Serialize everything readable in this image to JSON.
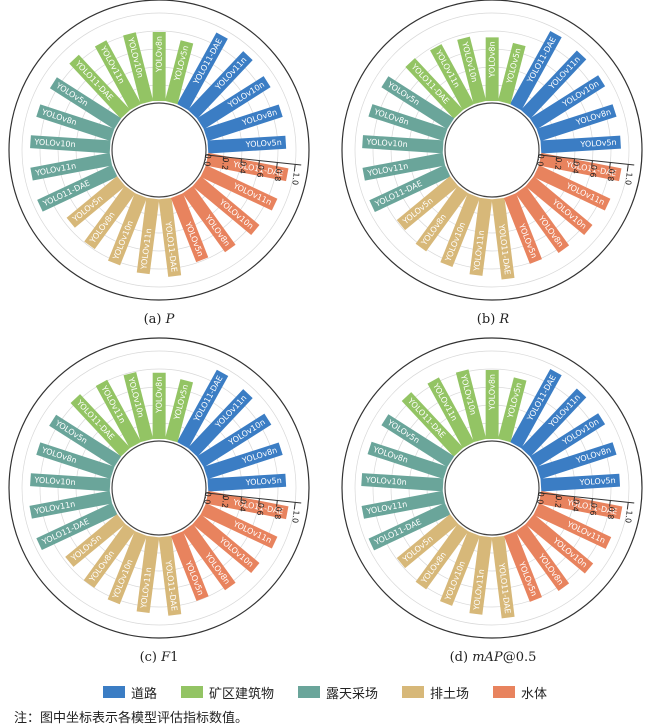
{
  "categories": [
    {
      "key": "road",
      "name": "道路",
      "color": "#3b7dc4"
    },
    {
      "key": "mine_building",
      "name": "矿区建筑物",
      "color": "#93c464"
    },
    {
      "key": "open_pit",
      "name": "露天采场",
      "color": "#6aa59a"
    },
    {
      "key": "dump",
      "name": "排土场",
      "color": "#d7b879"
    },
    {
      "key": "water",
      "name": "水体",
      "color": "#e8835e"
    }
  ],
  "models": [
    "YOLOv5n",
    "YOLOv8n",
    "YOLOv10n",
    "YOLOv11n",
    "YOLO11-DAE"
  ],
  "axis_ticks": [
    "0.0",
    "0.2",
    "0.4",
    "0.6",
    "0.8",
    "1.0"
  ],
  "note": "注：图中坐标表示各模型评估指标数值。",
  "chart_data": [
    {
      "type": "circular-bar",
      "metric": "P",
      "caption_prefix": "(a) ",
      "caption_italic": "P",
      "caption_suffix": "",
      "ylim": [
        0,
        1
      ],
      "series": {
        "road": [
          0.8,
          0.81,
          0.81,
          0.83,
          0.84
        ],
        "mine_building": [
          0.63,
          0.7,
          0.72,
          0.74,
          0.77
        ],
        "open_pit": [
          0.78,
          0.8,
          0.82,
          0.83,
          0.85
        ],
        "dump": [
          0.66,
          0.7,
          0.74,
          0.77,
          0.8
        ],
        "water": [
          0.7,
          0.74,
          0.78,
          0.81,
          0.84
        ]
      }
    },
    {
      "type": "circular-bar",
      "metric": "R",
      "caption_prefix": "(b) ",
      "caption_italic": "R",
      "caption_suffix": "",
      "ylim": [
        0,
        1
      ],
      "series": {
        "road": [
          0.82,
          0.82,
          0.83,
          0.84,
          0.86
        ],
        "mine_building": [
          0.6,
          0.64,
          0.67,
          0.69,
          0.72
        ],
        "open_pit": [
          0.8,
          0.81,
          0.83,
          0.84,
          0.86
        ],
        "dump": [
          0.7,
          0.73,
          0.76,
          0.79,
          0.83
        ],
        "water": [
          0.72,
          0.75,
          0.78,
          0.81,
          0.84
        ]
      }
    },
    {
      "type": "circular-bar",
      "metric": "F1",
      "caption_prefix": "(c) ",
      "caption_italic": "F",
      "caption_suffix": "1",
      "ylim": [
        0,
        1
      ],
      "series": {
        "road": [
          0.8,
          0.81,
          0.82,
          0.83,
          0.85
        ],
        "mine_building": [
          0.62,
          0.67,
          0.7,
          0.72,
          0.75
        ],
        "open_pit": [
          0.79,
          0.8,
          0.82,
          0.84,
          0.86
        ],
        "dump": [
          0.68,
          0.71,
          0.75,
          0.78,
          0.81
        ],
        "water": [
          0.71,
          0.74,
          0.78,
          0.81,
          0.84
        ]
      }
    },
    {
      "type": "circular-bar",
      "metric": "mAP@0.5",
      "caption_prefix": "(d) ",
      "caption_italic": "mAP",
      "caption_suffix": "@0.5",
      "ylim": [
        0,
        1
      ],
      "series": {
        "road": [
          0.81,
          0.82,
          0.83,
          0.84,
          0.86
        ],
        "mine_building": [
          0.64,
          0.7,
          0.73,
          0.75,
          0.78
        ],
        "open_pit": [
          0.8,
          0.82,
          0.84,
          0.85,
          0.87
        ],
        "dump": [
          0.7,
          0.73,
          0.77,
          0.8,
          0.84
        ],
        "water": [
          0.72,
          0.75,
          0.79,
          0.82,
          0.85
        ]
      }
    }
  ]
}
